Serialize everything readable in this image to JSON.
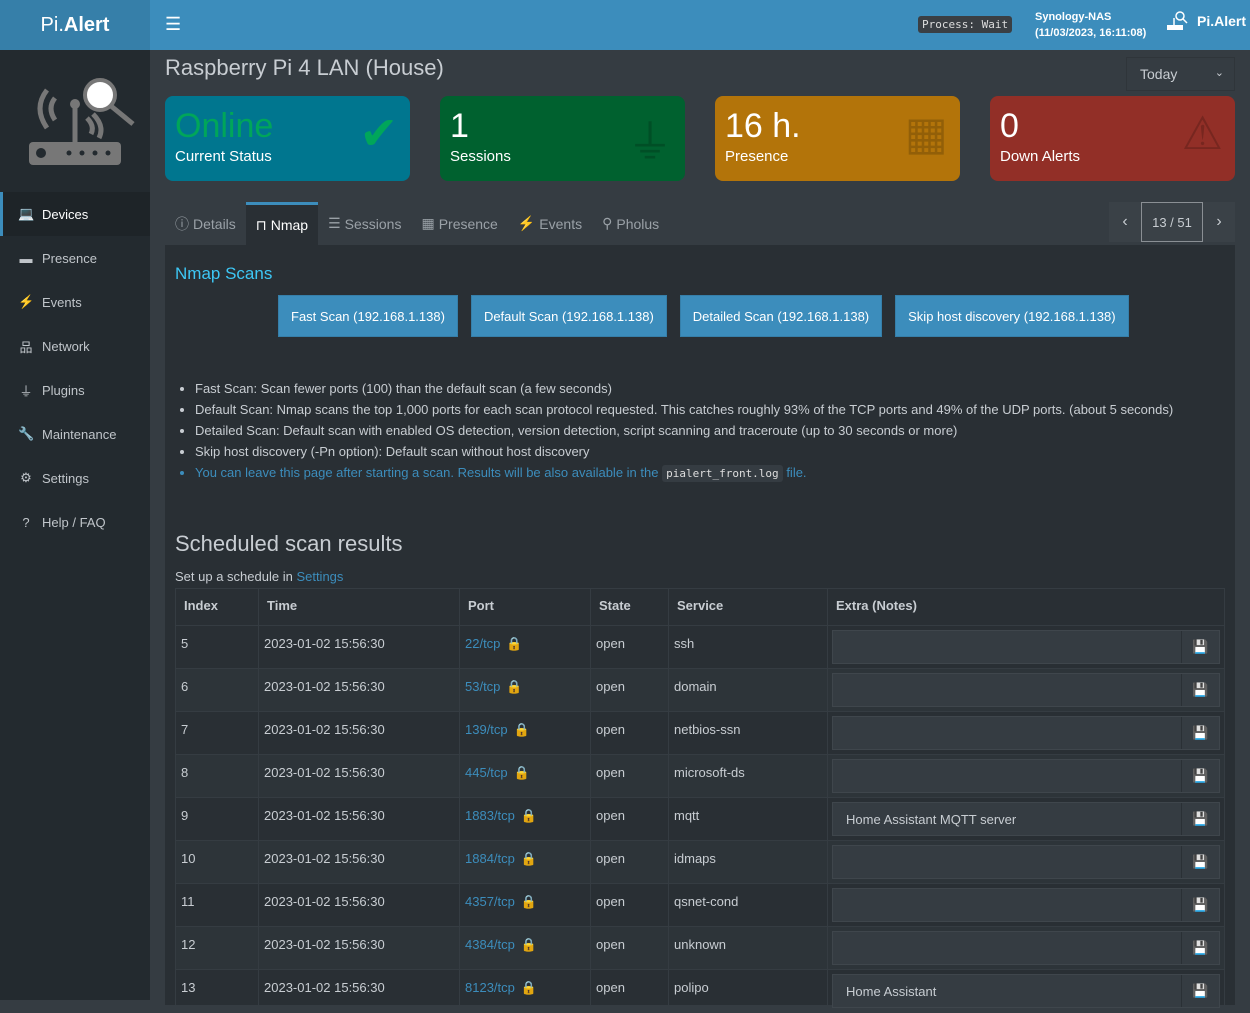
{
  "header": {
    "logo_pre": "Pi.",
    "logo_bold": "Alert",
    "process": "Process: Wait",
    "host_name": "Synology-NAS",
    "host_time": "(11/03/2023, 16:11:08)",
    "brand": "Pi.Alert"
  },
  "sidebar": {
    "items": [
      {
        "label": "Devices",
        "icon": "laptop-icon",
        "glyph": "💻",
        "active": true
      },
      {
        "label": "Presence",
        "icon": "calendar-icon",
        "glyph": "▬"
      },
      {
        "label": "Events",
        "icon": "bolt-icon",
        "glyph": "⚡"
      },
      {
        "label": "Network",
        "icon": "sitemap-icon",
        "glyph": "品"
      },
      {
        "label": "Plugins",
        "icon": "plug-icon",
        "glyph": "⏚"
      },
      {
        "label": "Maintenance",
        "icon": "wrench-icon",
        "glyph": "🔧"
      },
      {
        "label": "Settings",
        "icon": "gear-icon",
        "glyph": "⚙"
      },
      {
        "label": "Help / FAQ",
        "icon": "question-icon",
        "glyph": "?"
      }
    ]
  },
  "page": {
    "title": "Raspberry Pi 4 LAN (House)",
    "period": "Today"
  },
  "boxes": [
    {
      "value": "Online",
      "label": "Current Status",
      "color": "#00768f",
      "value_color": "#00a65a",
      "icon": "check-icon",
      "glyph": "✔"
    },
    {
      "value": "1",
      "label": "Sessions",
      "color": "#00612f",
      "icon": "plug-icon",
      "glyph": "⏚"
    },
    {
      "value": "16 h.",
      "label": "Presence",
      "color": "#b3740a",
      "icon": "calendar-icon",
      "glyph": "▦"
    },
    {
      "value": "0",
      "label": "Down Alerts",
      "color": "#922f27",
      "icon": "warning-icon",
      "glyph": "⚠"
    }
  ],
  "tabs": [
    {
      "label": "Details",
      "icon": "info-icon",
      "glyph": "ⓘ"
    },
    {
      "label": "Nmap",
      "icon": "ethernet-icon",
      "glyph": "⊓",
      "active": true
    },
    {
      "label": "Sessions",
      "icon": "list-ol-icon",
      "glyph": "☰"
    },
    {
      "label": "Presence",
      "icon": "calendar-icon",
      "glyph": "▦"
    },
    {
      "label": "Events",
      "icon": "bolt-icon",
      "glyph": "⚡"
    },
    {
      "label": "Pholus",
      "icon": "search-icon",
      "glyph": "⚲"
    }
  ],
  "pager": {
    "current": "13 / 51"
  },
  "nmap": {
    "title": "Nmap Scans",
    "buttons": [
      "Fast Scan (192.168.1.138)",
      "Default Scan (192.168.1.138)",
      "Detailed Scan (192.168.1.138)",
      "Skip host discovery (192.168.1.138)"
    ],
    "notes": [
      "Fast Scan: Scan fewer ports (100) than the default scan (a few seconds)",
      "Default Scan: Nmap scans the top 1,000 ports for each scan protocol requested. This catches roughly 93% of the TCP ports and 49% of the UDP ports. (about 5 seconds)",
      "Detailed Scan: Default scan with enabled OS detection, version detection, script scanning and traceroute (up to 30 seconds or more)",
      "Skip host discovery (-Pn option): Default scan without host discovery"
    ],
    "note_link_pre": "You can leave this page after starting a scan. Results will be also available in the",
    "note_link_code": "pialert_front.log",
    "note_link_post": "file."
  },
  "scheduled": {
    "title": "Scheduled scan results",
    "subtitle_pre": "Set up a schedule in",
    "subtitle_link": "Settings",
    "columns": [
      "Index",
      "Time",
      "Port",
      "State",
      "Service",
      "Extra (Notes)"
    ],
    "rows": [
      {
        "index": "5",
        "time": "2023-01-02 15:56:30",
        "port": "22/tcp",
        "state": "open",
        "service": "ssh",
        "extra": ""
      },
      {
        "index": "6",
        "time": "2023-01-02 15:56:30",
        "port": "53/tcp",
        "state": "open",
        "service": "domain",
        "extra": ""
      },
      {
        "index": "7",
        "time": "2023-01-02 15:56:30",
        "port": "139/tcp",
        "state": "open",
        "service": "netbios-ssn",
        "extra": ""
      },
      {
        "index": "8",
        "time": "2023-01-02 15:56:30",
        "port": "445/tcp",
        "state": "open",
        "service": "microsoft-ds",
        "extra": ""
      },
      {
        "index": "9",
        "time": "2023-01-02 15:56:30",
        "port": "1883/tcp",
        "state": "open",
        "service": "mqtt",
        "extra": "Home Assistant MQTT server"
      },
      {
        "index": "10",
        "time": "2023-01-02 15:56:30",
        "port": "1884/tcp",
        "state": "open",
        "service": "idmaps",
        "extra": ""
      },
      {
        "index": "11",
        "time": "2023-01-02 15:56:30",
        "port": "4357/tcp",
        "state": "open",
        "service": "qsnet-cond",
        "extra": ""
      },
      {
        "index": "12",
        "time": "2023-01-02 15:56:30",
        "port": "4384/tcp",
        "state": "open",
        "service": "unknown",
        "extra": ""
      },
      {
        "index": "13",
        "time": "2023-01-02 15:56:30",
        "port": "8123/tcp",
        "state": "open",
        "service": "polipo",
        "extra": "Home Assistant"
      }
    ]
  }
}
